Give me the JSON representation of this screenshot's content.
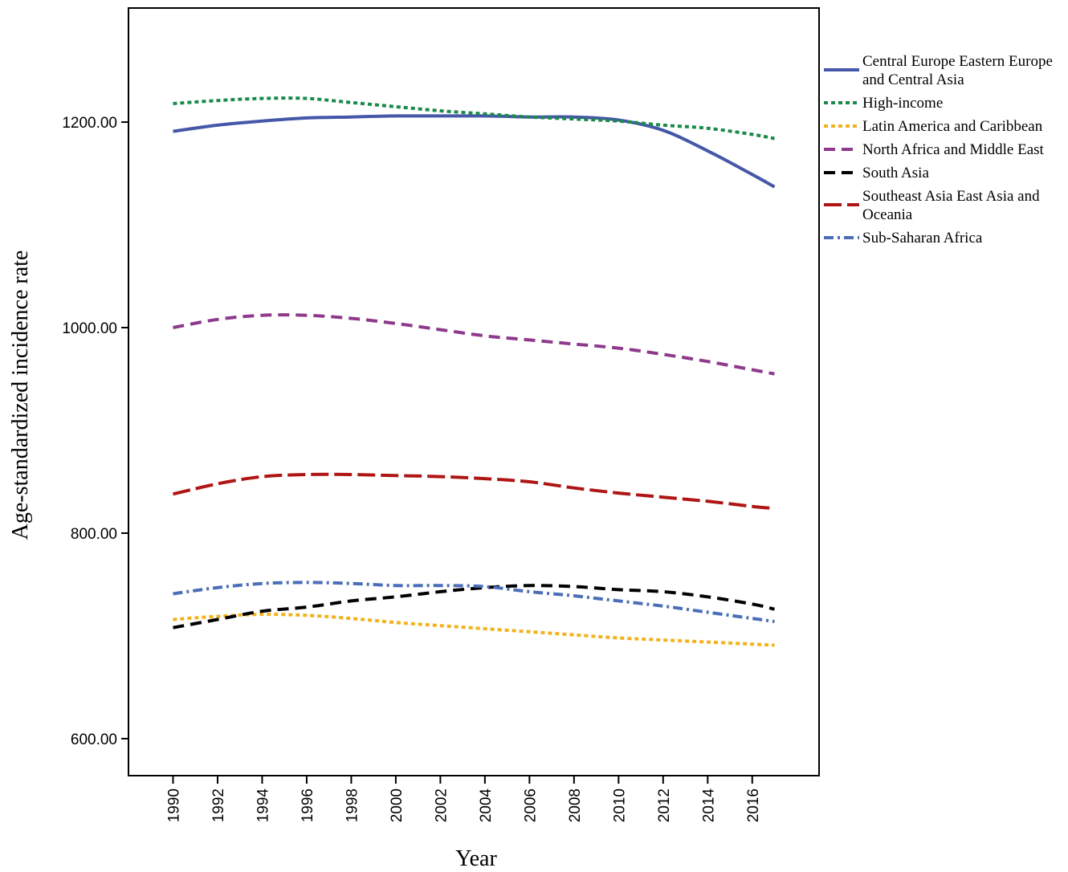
{
  "chart_data": {
    "type": "line",
    "xlabel": "Year",
    "ylabel": "Age-standardized incidence rate",
    "xlim": [
      1988,
      2019
    ],
    "ylim": [
      564,
      1311
    ],
    "x_ticks": [
      1990,
      1992,
      1994,
      1996,
      1998,
      2000,
      2002,
      2004,
      2006,
      2008,
      2010,
      2012,
      2014,
      2016
    ],
    "y_ticks": [
      {
        "value": 600,
        "label": "600.00"
      },
      {
        "value": 800,
        "label": "800.00"
      },
      {
        "value": 1000,
        "label": "1000.00"
      },
      {
        "value": 1200,
        "label": "1200.00"
      }
    ],
    "legend_position": "right",
    "x": [
      1990,
      1992,
      1994,
      1996,
      1998,
      2000,
      2002,
      2004,
      2006,
      2008,
      2010,
      2012,
      2014,
      2016,
      2017
    ],
    "series": [
      {
        "name": "Central Europe Eastern Europe and Central Asia",
        "color": "#4557a8",
        "dash": "solid",
        "values": [
          1191,
          1197,
          1201,
          1204,
          1205,
          1206,
          1206,
          1206,
          1205,
          1205,
          1202,
          1192,
          1172,
          1149,
          1137
        ]
      },
      {
        "name": "High-income",
        "color": "#1a8a4a",
        "dash": "dot",
        "values": [
          1218,
          1221,
          1223,
          1223,
          1219,
          1215,
          1211,
          1208,
          1205,
          1203,
          1201,
          1197,
          1194,
          1188,
          1184
        ]
      },
      {
        "name": "Latin America and Caribbean",
        "color": "#f2b21b",
        "dash": "dot",
        "values": [
          716,
          719,
          721,
          720,
          717,
          713,
          710,
          707,
          704,
          701,
          698,
          696,
          694,
          692,
          691
        ]
      },
      {
        "name": "North Africa and Middle East",
        "color": "#8e3a8c",
        "dash": "dash",
        "values": [
          1000,
          1008,
          1012,
          1012,
          1009,
          1004,
          998,
          992,
          988,
          984,
          980,
          974,
          967,
          959,
          955
        ]
      },
      {
        "name": "South Asia",
        "color": "#000000",
        "dash": "dash",
        "values": [
          708,
          716,
          724,
          728,
          734,
          738,
          743,
          747,
          749,
          748,
          745,
          743,
          738,
          731,
          726
        ]
      },
      {
        "name": "Southeast Asia East Asia and Oceania",
        "color": "#b01515",
        "dash": "longdash",
        "values": [
          838,
          848,
          855,
          857,
          857,
          856,
          855,
          853,
          850,
          844,
          839,
          835,
          831,
          826,
          824
        ]
      },
      {
        "name": "Sub-Saharan Africa",
        "color": "#4a6eb8",
        "dash": "dashdot",
        "values": [
          741,
          747,
          751,
          752,
          751,
          749,
          749,
          748,
          743,
          739,
          734,
          729,
          723,
          717,
          714
        ]
      }
    ]
  }
}
